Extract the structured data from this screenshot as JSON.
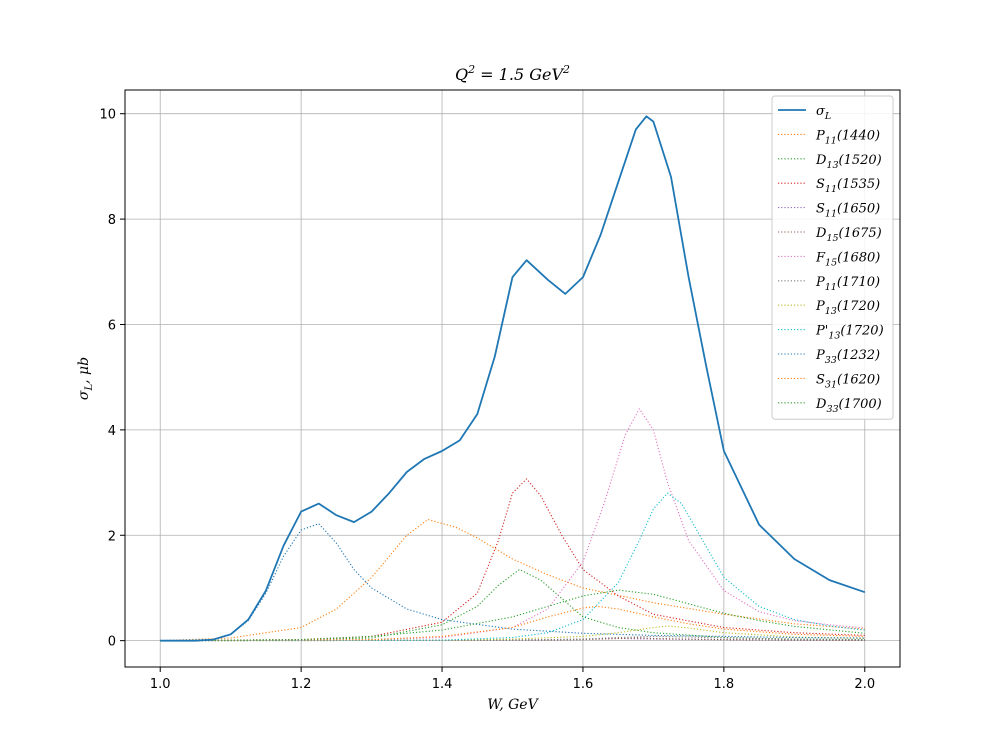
{
  "chart_data": {
    "type": "line",
    "title": "Q² = 1.5 GeV²",
    "title_parts": {
      "q": "Q",
      "qsup": "2",
      "mid": " = 1.5 ",
      "unit": "GeV",
      "unitsup": "2"
    },
    "xlabel": "W, GeV",
    "ylabel": "σL, μb",
    "ylabel_parts": {
      "sym": "σ",
      "sub": "L",
      "rest": ", μb"
    },
    "xlim": [
      0.95,
      2.05
    ],
    "ylim": [
      -0.5,
      10.45
    ],
    "xticks": [
      1.0,
      1.2,
      1.4,
      1.6,
      1.8,
      2.0
    ],
    "xtick_labels": [
      "1.0",
      "1.2",
      "1.4",
      "1.6",
      "1.8",
      "2.0"
    ],
    "yticks": [
      0,
      2,
      4,
      6,
      8,
      10
    ],
    "ytick_labels": [
      "0",
      "2",
      "4",
      "6",
      "8",
      "10"
    ],
    "grid": true,
    "legend_position": "top-right",
    "series": [
      {
        "name": "σL",
        "label": {
          "sym": "σ",
          "sub": "L",
          "rest": ""
        },
        "color": "#1f77b4",
        "style": "solid",
        "x": [
          1.0,
          1.05,
          1.075,
          1.1,
          1.125,
          1.15,
          1.175,
          1.2,
          1.225,
          1.25,
          1.275,
          1.3,
          1.325,
          1.35,
          1.375,
          1.4,
          1.425,
          1.45,
          1.475,
          1.5,
          1.52,
          1.55,
          1.575,
          1.6,
          1.625,
          1.65,
          1.675,
          1.69,
          1.7,
          1.725,
          1.75,
          1.775,
          1.8,
          1.85,
          1.9,
          1.95,
          2.0
        ],
        "y": [
          0,
          0,
          0.02,
          0.12,
          0.4,
          0.95,
          1.8,
          2.45,
          2.6,
          2.38,
          2.25,
          2.45,
          2.8,
          3.2,
          3.45,
          3.6,
          3.8,
          4.3,
          5.4,
          6.9,
          7.22,
          6.85,
          6.58,
          6.9,
          7.7,
          8.7,
          9.7,
          9.95,
          9.85,
          8.8,
          6.9,
          5.2,
          3.6,
          2.2,
          1.55,
          1.15,
          0.92
        ]
      },
      {
        "name": "P11(1440)",
        "label": {
          "sym": "P",
          "sub": "11",
          "rest": "(1440)"
        },
        "color": "#ff7f0e",
        "style": "dotted",
        "x": [
          1.0,
          1.1,
          1.2,
          1.25,
          1.3,
          1.35,
          1.38,
          1.42,
          1.45,
          1.5,
          1.55,
          1.6,
          1.7,
          1.8,
          1.9,
          2.0
        ],
        "y": [
          0,
          0.05,
          0.25,
          0.6,
          1.2,
          2.0,
          2.3,
          2.15,
          1.95,
          1.55,
          1.25,
          1.0,
          0.72,
          0.5,
          0.32,
          0.22
        ]
      },
      {
        "name": "D13(1520)",
        "label": {
          "sym": "D",
          "sub": "13",
          "rest": "(1520)"
        },
        "color": "#2ca02c",
        "style": "dotted",
        "x": [
          1.0,
          1.2,
          1.3,
          1.4,
          1.45,
          1.48,
          1.51,
          1.54,
          1.57,
          1.6,
          1.65,
          1.7,
          1.8,
          1.9,
          2.0
        ],
        "y": [
          0,
          0.02,
          0.05,
          0.3,
          0.65,
          1.05,
          1.35,
          1.15,
          0.8,
          0.45,
          0.25,
          0.15,
          0.06,
          0.03,
          0.02
        ]
      },
      {
        "name": "S11(1535)",
        "label": {
          "sym": "S",
          "sub": "11",
          "rest": "(1535)"
        },
        "color": "#d62728",
        "style": "dotted",
        "x": [
          1.0,
          1.2,
          1.3,
          1.4,
          1.45,
          1.48,
          1.5,
          1.52,
          1.54,
          1.57,
          1.6,
          1.65,
          1.7,
          1.8,
          1.9,
          2.0
        ],
        "y": [
          0,
          0.02,
          0.08,
          0.35,
          0.9,
          1.9,
          2.8,
          3.07,
          2.75,
          2.0,
          1.35,
          0.85,
          0.5,
          0.25,
          0.15,
          0.1
        ]
      },
      {
        "name": "S11(1650)",
        "label": {
          "sym": "S",
          "sub": "11",
          "rest": "(1650)"
        },
        "color": "#9467bd",
        "style": "dotted",
        "x": [
          1.0,
          1.4,
          1.55,
          1.6,
          1.65,
          1.7,
          1.8,
          1.9,
          2.0
        ],
        "y": [
          0,
          0.01,
          0.02,
          0.03,
          0.04,
          0.03,
          0.02,
          0.01,
          0.01
        ]
      },
      {
        "name": "D15(1675)",
        "label": {
          "sym": "D",
          "sub": "15",
          "rest": "(1675)"
        },
        "color": "#8c564b",
        "style": "dotted",
        "x": [
          1.0,
          1.4,
          1.55,
          1.6,
          1.65,
          1.68,
          1.7,
          1.75,
          1.8,
          1.9,
          2.0
        ],
        "y": [
          0,
          0.005,
          0.01,
          0.02,
          0.04,
          0.05,
          0.04,
          0.03,
          0.02,
          0.01,
          0.005
        ]
      },
      {
        "name": "F15(1680)",
        "label": {
          "sym": "F",
          "sub": "15",
          "rest": "(1680)"
        },
        "color": "#e377c2",
        "style": "dotted",
        "x": [
          1.0,
          1.3,
          1.4,
          1.5,
          1.55,
          1.6,
          1.63,
          1.66,
          1.68,
          1.7,
          1.72,
          1.75,
          1.8,
          1.85,
          1.9,
          1.95,
          2.0
        ],
        "y": [
          0,
          0.02,
          0.06,
          0.25,
          0.6,
          1.5,
          2.6,
          3.9,
          4.4,
          4.0,
          3.0,
          1.9,
          0.95,
          0.55,
          0.38,
          0.3,
          0.24
        ]
      },
      {
        "name": "P11(1710)",
        "label": {
          "sym": "P",
          "sub": "11",
          "rest": "(1710)"
        },
        "color": "#7f7f7f",
        "style": "dotted",
        "x": [
          1.0,
          1.4,
          1.5,
          1.6,
          1.65,
          1.7,
          1.75,
          1.8,
          1.9,
          2.0
        ],
        "y": [
          0,
          0.005,
          0.01,
          0.03,
          0.06,
          0.08,
          0.07,
          0.05,
          0.03,
          0.02
        ]
      },
      {
        "name": "P13(1720)",
        "label": {
          "sym": "P",
          "sub": "13",
          "rest": "(1720)"
        },
        "color": "#bcbd22",
        "style": "dotted",
        "x": [
          1.0,
          1.4,
          1.5,
          1.6,
          1.65,
          1.7,
          1.72,
          1.75,
          1.8,
          1.9,
          2.0
        ],
        "y": [
          0,
          0.01,
          0.03,
          0.08,
          0.15,
          0.25,
          0.28,
          0.24,
          0.15,
          0.07,
          0.04
        ]
      },
      {
        "name": "P'13(1720)",
        "label": {
          "sym": "P'",
          "sub": "13",
          "rest": "(1720)"
        },
        "color": "#17becf",
        "style": "dotted",
        "x": [
          1.0,
          1.4,
          1.5,
          1.55,
          1.6,
          1.65,
          1.68,
          1.7,
          1.72,
          1.74,
          1.77,
          1.8,
          1.85,
          1.9,
          1.95,
          2.0
        ],
        "y": [
          0,
          0.01,
          0.06,
          0.15,
          0.4,
          1.1,
          1.9,
          2.5,
          2.8,
          2.6,
          1.9,
          1.2,
          0.65,
          0.4,
          0.28,
          0.2
        ]
      },
      {
        "name": "P33(1232)",
        "label": {
          "sym": "P",
          "sub": "33",
          "rest": "(1232)"
        },
        "color": "#1f77b4",
        "style": "dotted",
        "x": [
          1.0,
          1.075,
          1.1,
          1.125,
          1.15,
          1.175,
          1.2,
          1.225,
          1.25,
          1.275,
          1.3,
          1.35,
          1.4,
          1.5,
          1.6,
          1.7,
          1.8,
          1.9,
          2.0
        ],
        "y": [
          0,
          0.02,
          0.12,
          0.38,
          0.9,
          1.6,
          2.1,
          2.22,
          1.85,
          1.35,
          1.0,
          0.6,
          0.4,
          0.22,
          0.14,
          0.1,
          0.08,
          0.06,
          0.05
        ]
      },
      {
        "name": "S31(1620)",
        "label": {
          "sym": "S",
          "sub": "31",
          "rest": "(1620)"
        },
        "color": "#ff7f0e",
        "style": "dotted",
        "x": [
          1.0,
          1.3,
          1.4,
          1.5,
          1.55,
          1.6,
          1.62,
          1.65,
          1.7,
          1.75,
          1.8,
          1.9,
          2.0
        ],
        "y": [
          0,
          0.02,
          0.08,
          0.25,
          0.45,
          0.62,
          0.65,
          0.6,
          0.45,
          0.32,
          0.22,
          0.12,
          0.08
        ]
      },
      {
        "name": "D33(1700)",
        "label": {
          "sym": "D",
          "sub": "33",
          "rest": "(1700)"
        },
        "color": "#2ca02c",
        "style": "dotted",
        "x": [
          1.0,
          1.2,
          1.3,
          1.4,
          1.5,
          1.55,
          1.6,
          1.65,
          1.7,
          1.75,
          1.8,
          1.85,
          1.9,
          2.0
        ],
        "y": [
          0,
          0.02,
          0.08,
          0.2,
          0.45,
          0.65,
          0.85,
          0.96,
          0.88,
          0.7,
          0.52,
          0.38,
          0.27,
          0.14
        ]
      }
    ]
  }
}
